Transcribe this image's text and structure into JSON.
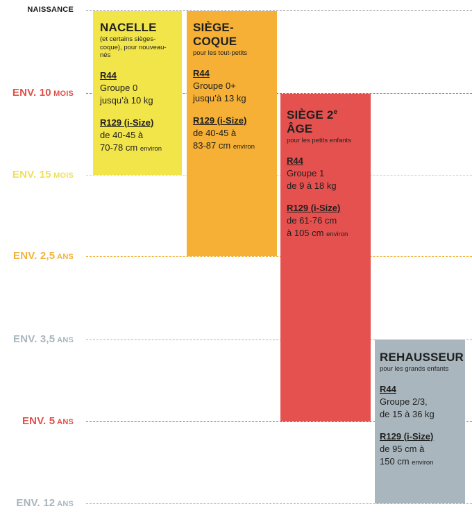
{
  "axis": [
    {
      "id": "naissance",
      "num": "",
      "unit": "NAISSANCE",
      "color": "#1a1a1a"
    },
    {
      "id": "10mois",
      "num": "ENV. 10",
      "unit": "MOIS",
      "color": "#e0504a"
    },
    {
      "id": "15mois",
      "num": "ENV. 15",
      "unit": "MOIS",
      "color": "#efe05a"
    },
    {
      "id": "2_5ans",
      "num": "ENV. 2,5",
      "unit": "ANS",
      "color": "#f2b23a"
    },
    {
      "id": "3_5ans",
      "num": "ENV. 3,5",
      "unit": "ANS",
      "color": "#a8b5bd"
    },
    {
      "id": "5ans",
      "num": "ENV. 5",
      "unit": "ANS",
      "color": "#e0504a"
    },
    {
      "id": "12ans",
      "num": "ENV. 12",
      "unit": "ANS",
      "color": "#a8b5bd"
    }
  ],
  "bars": [
    {
      "id": "nacelle",
      "color": "#f2e54a",
      "title": "NACELLE",
      "subtitle": "(et certains sièges-coque), pour nouveau-nés",
      "r44_label": "R44",
      "r44_line1": "Groupe 0",
      "r44_line2": "jusqu’à 10 kg",
      "r129_label": "R129 (i-Size)",
      "r129_line1": "de 40-45 à",
      "r129_line2": "70-78 cm",
      "r129_small": "environ"
    },
    {
      "id": "siege-coque",
      "color": "#f5b035",
      "title": "SIÈGE-COQUE",
      "subtitle": "pour les tout-petits",
      "r44_label": "R44",
      "r44_line1": "Groupe 0+",
      "r44_line2": "jusqu’à 13 kg",
      "r129_label": "R129 (i-Size)",
      "r129_line1": "de 40-45 à",
      "r129_line2": "83-87 cm",
      "r129_small": "environ"
    },
    {
      "id": "siege-2e-age",
      "color": "#e5514e",
      "title": "SIÈGE 2",
      "title_sup": "e",
      "title_end": " ÂGE",
      "subtitle": "pour les petits enfants",
      "r44_label": "R44",
      "r44_line1": "Groupe 1",
      "r44_line2": "de 9 à 18 kg",
      "r129_label": "R129 (i-Size)",
      "r129_line1": "de 61-76 cm",
      "r129_line2": "à 105 cm",
      "r129_small": "environ"
    },
    {
      "id": "rehausseur",
      "color": "#a9b6bd",
      "title": "REHAUSSEUR",
      "subtitle": "pour les grands enfants",
      "r44_label": "R44",
      "r44_line1": "Groupe 2/3,",
      "r44_line2": "de 15 à 36 kg",
      "r129_label": "R129 (i-Size)",
      "r129_line1": "de 95 cm à",
      "r129_line2": "150 cm",
      "r129_small": "environ"
    }
  ]
}
